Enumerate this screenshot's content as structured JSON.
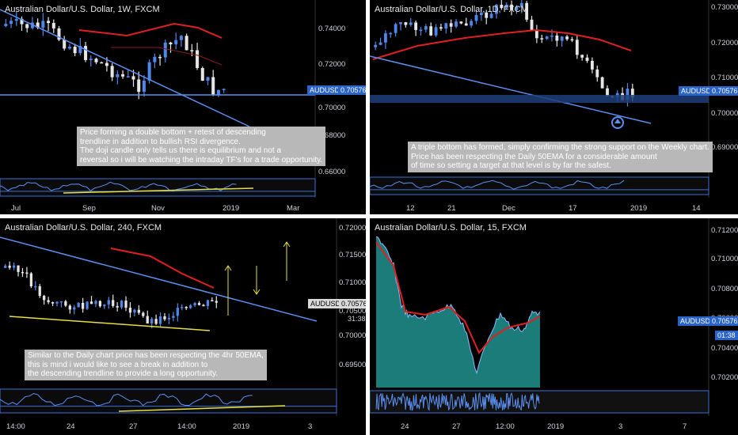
{
  "charts": [
    {
      "id": "weekly",
      "title": "Australian Dollar/U.S. Dollar, 1W, FXCM",
      "price_tag": "AUDUSD",
      "price_value": "0.70576",
      "y_ticks": [
        "0.74000",
        "0.72000",
        "0.70000",
        "0.68000",
        "0.66000"
      ],
      "x_ticks": [
        "Jul",
        "Sep",
        "Nov",
        "2019",
        "Mar"
      ],
      "note": "Price forming a double bottom + retest of descending\ntrendline in addition to bullish RSI divergence.\nThe doji candle only tells us there is equilibrium and not a\nreversal so i will be watching the intraday TF's for a trade opportunity."
    },
    {
      "id": "daily",
      "title": "Australian Dollar/U.S. Dollar, 1D, FXCM",
      "price_tag": "AUDUSD",
      "price_value": "0.70576",
      "y_ticks": [
        "0.73000",
        "0.72000",
        "0.71000",
        "0.70000",
        "0.69000"
      ],
      "x_ticks": [
        "12",
        "21",
        "Dec",
        "17",
        "2019",
        "14"
      ],
      "note": "A triple bottom has formed, simply confirming the strong support on the Weekly chart.\nPrice has been respecting the Daily 50EMA for a considerable amount\nof time so setting a target at that level is by far the safest."
    },
    {
      "id": "h4",
      "title": "Australian Dollar/U.S. Dollar, 240, FXCM",
      "price_tag": "AUDUSD",
      "price_value": "0.70576",
      "timer": "31:38",
      "y_ticks": [
        "0.72000",
        "0.71500",
        "0.71000",
        "0.70500",
        "0.70000",
        "0.69500"
      ],
      "x_ticks": [
        "14:00",
        "24",
        "27",
        "14:00",
        "2019",
        "3"
      ],
      "note": "Similar to the Daily chart price has been respecting the 4hr 50EMA,\nthis is mind i would like to see a break in addition to\nthe descending trendline to provide a long opportunity."
    },
    {
      "id": "m15",
      "title": "Australian Dollar/U.S. Dollar, 15, FXCM",
      "price_tag": "AUDUSD",
      "price_value": "0.70576",
      "timer": "01:38",
      "y_ticks": [
        "0.71200",
        "0.71000",
        "0.70800",
        "0.70600",
        "0.70400",
        "0.70200"
      ],
      "x_ticks": [
        "24",
        "27",
        "12:00",
        "2019",
        "3",
        "7"
      ]
    }
  ],
  "chart_data": [
    {
      "type": "line",
      "title": "Australian Dollar/U.S. Dollar, 1W, FXCM",
      "x": [
        "Jul",
        "Sep",
        "Nov",
        "2019"
      ],
      "series": [],
      "ylim": [
        0.655,
        0.755
      ]
    },
    {
      "type": "line",
      "title": "Australian Dollar/U.S. Dollar, 1D, FXCM",
      "x": [
        "12",
        "21",
        "Dec",
        "17",
        "2019"
      ],
      "series": [],
      "ylim": [
        0.685,
        0.733
      ]
    },
    {
      "type": "line",
      "title": "Australian Dollar/U.S. Dollar, 240, FXCM",
      "x": [
        "14:00",
        "24",
        "27",
        "14:00",
        "2019"
      ],
      "series": [],
      "ylim": [
        0.692,
        0.721
      ]
    },
    {
      "type": "area",
      "title": "Australian Dollar/U.S. Dollar, 15, FXCM",
      "x": [
        "24",
        "27",
        "12:00",
        "2019"
      ],
      "series": [],
      "ylim": [
        0.7012,
        0.7126
      ]
    }
  ],
  "colors": {
    "bull": "#4f86e8",
    "bear": "#e6e6e6",
    "ema": "#e02020",
    "trend": "#5b8ff0",
    "support": "#e8e040",
    "price_bg": "#2a64c8",
    "area": "#1f8a86"
  }
}
